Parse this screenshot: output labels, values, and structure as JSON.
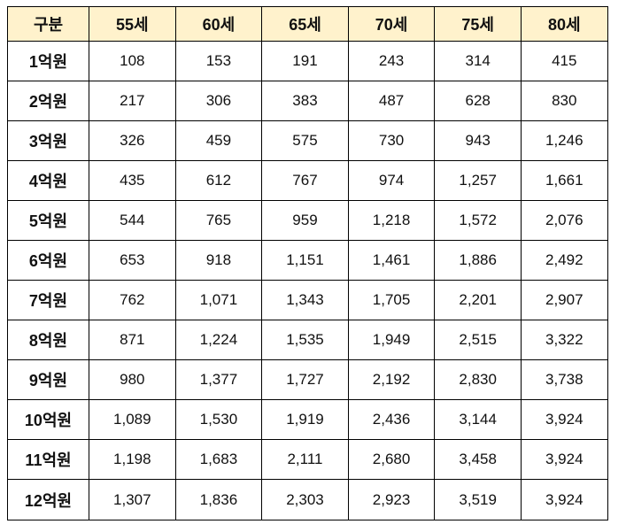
{
  "table": {
    "header": {
      "corner": "구분",
      "columns": [
        "55세",
        "60세",
        "65세",
        "70세",
        "75세",
        "80세"
      ]
    },
    "rows": [
      {
        "label": "1억원",
        "values": [
          "108",
          "153",
          "191",
          "243",
          "314",
          "415"
        ]
      },
      {
        "label": "2억원",
        "values": [
          "217",
          "306",
          "383",
          "487",
          "628",
          "830"
        ]
      },
      {
        "label": "3억원",
        "values": [
          "326",
          "459",
          "575",
          "730",
          "943",
          "1,246"
        ]
      },
      {
        "label": "4억원",
        "values": [
          "435",
          "612",
          "767",
          "974",
          "1,257",
          "1,661"
        ]
      },
      {
        "label": "5억원",
        "values": [
          "544",
          "765",
          "959",
          "1,218",
          "1,572",
          "2,076"
        ]
      },
      {
        "label": "6억원",
        "values": [
          "653",
          "918",
          "1,151",
          "1,461",
          "1,886",
          "2,492"
        ]
      },
      {
        "label": "7억원",
        "values": [
          "762",
          "1,071",
          "1,343",
          "1,705",
          "2,201",
          "2,907"
        ]
      },
      {
        "label": "8억원",
        "values": [
          "871",
          "1,224",
          "1,535",
          "1,949",
          "2,515",
          "3,322"
        ]
      },
      {
        "label": "9억원",
        "values": [
          "980",
          "1,377",
          "1,727",
          "2,192",
          "2,830",
          "3,738"
        ]
      },
      {
        "label": "10억원",
        "values": [
          "1,089",
          "1,530",
          "1,919",
          "2,436",
          "3,144",
          "3,924"
        ]
      },
      {
        "label": "11억원",
        "values": [
          "1,198",
          "1,683",
          "2,111",
          "2,680",
          "3,458",
          "3,924"
        ]
      },
      {
        "label": "12억원",
        "values": [
          "1,307",
          "1,836",
          "2,303",
          "2,923",
          "3,519",
          "3,924"
        ]
      }
    ]
  },
  "colors": {
    "header_background": "#fff2cc",
    "border": "#000000",
    "text": "#111111"
  }
}
